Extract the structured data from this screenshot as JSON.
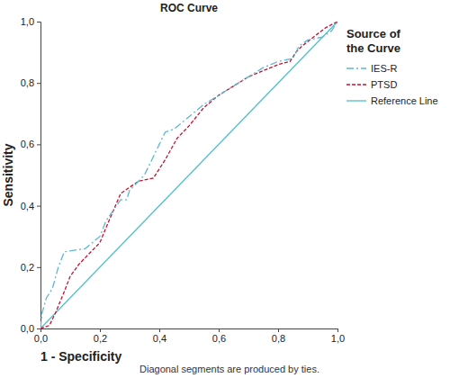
{
  "chart_data": {
    "type": "line",
    "title": "ROC Curve",
    "x_label": "1 - Specificity",
    "y_label": "Sensitivity",
    "footnote": "Diagonal segments are produced by ties.",
    "legend_title": "Source of the Curve",
    "legend": "right",
    "xlim": [
      0,
      1
    ],
    "ylim": [
      0,
      1
    ],
    "xticks": [
      {
        "value": 0,
        "label": "0,0"
      },
      {
        "value": 0.2,
        "label": "0,2"
      },
      {
        "value": 0.4,
        "label": "0,4"
      },
      {
        "value": 0.6,
        "label": "0,6"
      },
      {
        "value": 0.8,
        "label": "0,8"
      },
      {
        "value": 1,
        "label": "1,0"
      }
    ],
    "yticks": [
      {
        "value": 0,
        "label": "0,0"
      },
      {
        "value": 0.2,
        "label": "0,2"
      },
      {
        "value": 0.4,
        "label": "0,4"
      },
      {
        "value": 0.6,
        "label": "0,6"
      },
      {
        "value": 0.8,
        "label": "0,8"
      },
      {
        "value": 1,
        "label": "1,0"
      }
    ],
    "grid": false,
    "series": [
      {
        "name": "IES-R",
        "color": "#5bb8d4",
        "line_style": "dash-dot",
        "x": [
          0,
          0.005,
          0.02,
          0.04,
          0.06,
          0.08,
          0.15,
          0.2,
          0.22,
          0.27,
          0.29,
          0.3,
          0.35,
          0.38,
          0.4,
          0.42,
          0.45,
          0.5,
          0.55,
          0.6,
          0.65,
          0.7,
          0.75,
          0.8,
          0.85,
          0.87,
          0.9,
          0.95,
          0.98,
          1
        ],
        "values": [
          0,
          0.05,
          0.1,
          0.13,
          0.2,
          0.25,
          0.26,
          0.3,
          0.35,
          0.42,
          0.42,
          0.45,
          0.5,
          0.56,
          0.6,
          0.64,
          0.65,
          0.69,
          0.73,
          0.76,
          0.79,
          0.82,
          0.85,
          0.87,
          0.88,
          0.92,
          0.94,
          0.95,
          0.97,
          1
        ]
      },
      {
        "name": "PTSD",
        "color": "#c8102e",
        "line_style": "dashed",
        "x": [
          0,
          0.03,
          0.05,
          0.08,
          0.1,
          0.13,
          0.18,
          0.2,
          0.23,
          0.27,
          0.3,
          0.33,
          0.38,
          0.42,
          0.46,
          0.5,
          0.55,
          0.6,
          0.65,
          0.7,
          0.75,
          0.8,
          0.84,
          0.86,
          0.88,
          0.92,
          0.96,
          1
        ],
        "values": [
          0,
          0.01,
          0.05,
          0.12,
          0.17,
          0.21,
          0.26,
          0.28,
          0.35,
          0.44,
          0.46,
          0.48,
          0.49,
          0.55,
          0.62,
          0.66,
          0.72,
          0.76,
          0.79,
          0.82,
          0.84,
          0.86,
          0.87,
          0.9,
          0.92,
          0.95,
          0.98,
          1
        ]
      },
      {
        "name": "Reference Line",
        "color": "#4dbfce",
        "line_style": "solid",
        "x": [
          0,
          1
        ],
        "values": [
          0,
          1
        ]
      }
    ]
  }
}
